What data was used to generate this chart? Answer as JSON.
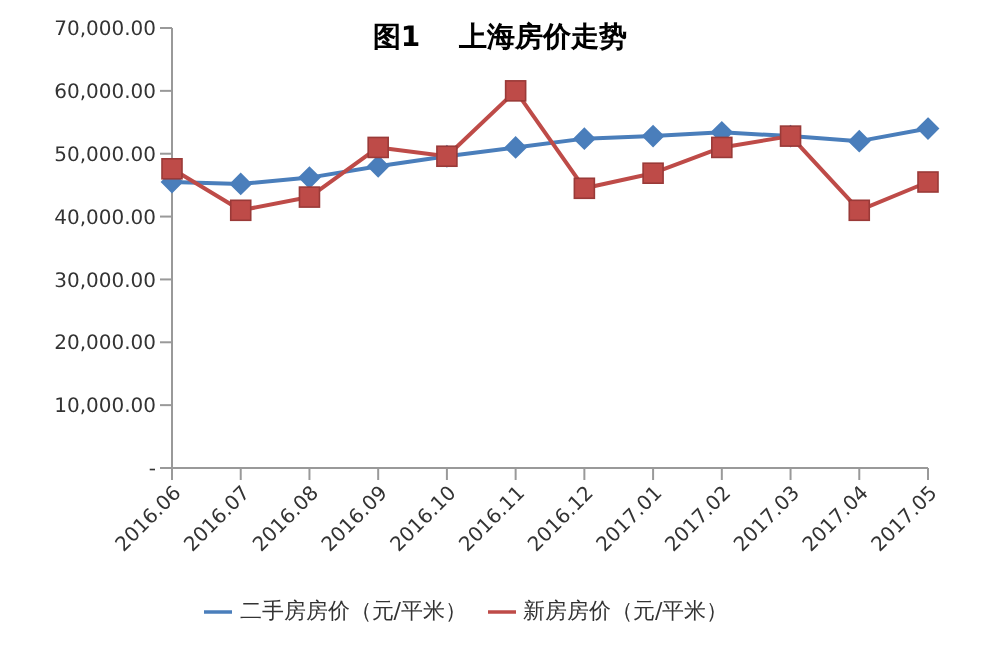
{
  "chart_data": {
    "type": "line",
    "title": "图1    上海房价走势",
    "categories": [
      "2016.06",
      "2016.07",
      "2016.08",
      "2016.09",
      "2016.10",
      "2016.11",
      "2016.12",
      "2017.01",
      "2017.02",
      "2017.03",
      "2017.04",
      "2017.05"
    ],
    "series": [
      {
        "name": "二手房房价（元/平米）",
        "color": "#4a7ebb",
        "marker": "diamond",
        "values": [
          45500,
          45200,
          46200,
          48000,
          49600,
          51000,
          52400,
          52800,
          53400,
          52800,
          52000,
          54000
        ]
      },
      {
        "name": "新房房价（元/平米）",
        "color": "#be4b48",
        "marker": "square",
        "values": [
          47600,
          41000,
          43100,
          51000,
          49600,
          60000,
          44500,
          46900,
          51000,
          52800,
          41000,
          45500
        ]
      }
    ],
    "ylim": [
      0,
      70000
    ],
    "yticks": [
      {
        "value": 0,
        "label": "-"
      },
      {
        "value": 10000,
        "label": "10,000.00"
      },
      {
        "value": 20000,
        "label": "20,000.00"
      },
      {
        "value": 30000,
        "label": "30,000.00"
      },
      {
        "value": 40000,
        "label": "40,000.00"
      },
      {
        "value": 50000,
        "label": "50,000.00"
      },
      {
        "value": 60000,
        "label": "60,000.00"
      },
      {
        "value": 70000,
        "label": "70,000.00"
      }
    ],
    "grid": false,
    "legend": "bottom",
    "line_style": "solid"
  }
}
